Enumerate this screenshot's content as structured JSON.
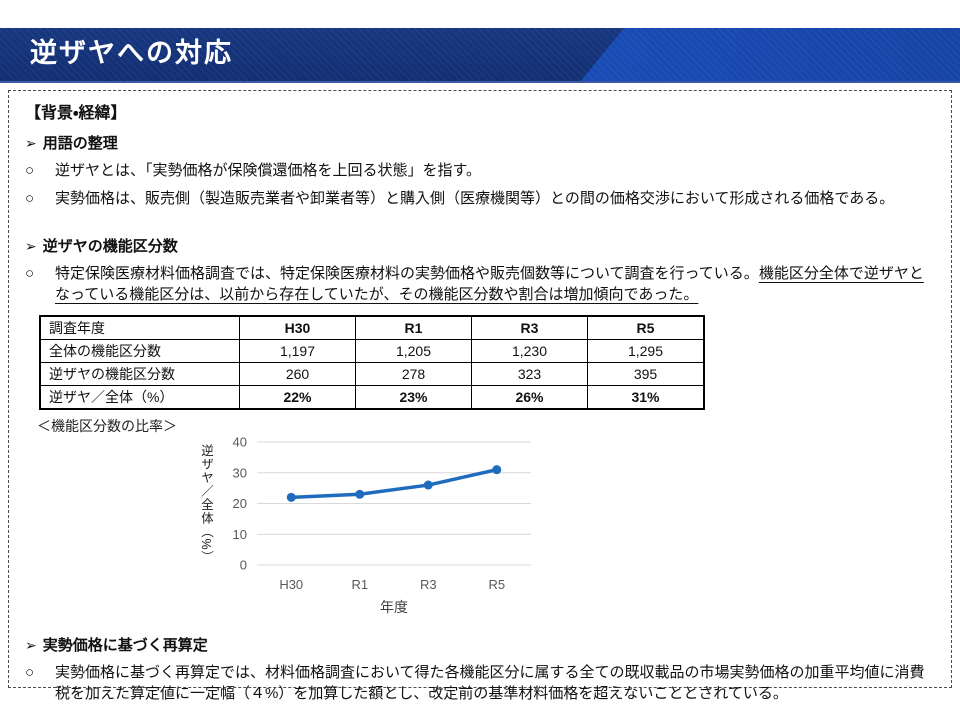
{
  "header": {
    "title": "逆ザヤへの対応"
  },
  "markers": {
    "arrow": "➢",
    "circle": "○"
  },
  "panel": {
    "heading": "【背景・経緯】",
    "terms": {
      "title": "用語の整理",
      "item1": "逆ザヤとは、「実勢価格が保険償還価格を上回る状態」を指す。",
      "item2": "実勢価格は、販売側（製造販売業者や卸業者等）と購入側（医療機関等）との間の価格交渉において形成される価格である。"
    },
    "counts": {
      "title": "逆ザヤの機能区分数",
      "item_plain": "特定保険医療材料価格調査では、特定保険医療材料の実勢価格や販売個数等について調査を行っている。",
      "underline_line1": "機能区分全体で逆ザヤと",
      "underline_line2": "なっている機能区分は、以前から存在していたが、その機能区分数や割合は増加傾向であった。"
    },
    "recalc": {
      "title": "実勢価格に基づく再算定",
      "item": "実勢価格に基づく再算定では、材料価格調査において得た各機能区分に属する全ての既収載品の市場実勢価格の加重平均値に消費税を加えた算定値に一定幅（４%）を加算した額とし、改定前の基準材料価格を超えないこととされている。"
    }
  },
  "table": {
    "header": [
      "調査年度",
      "H30",
      "R1",
      "R3",
      "R5"
    ],
    "rows": [
      {
        "label": "全体の機能区分数",
        "values": [
          "1,197",
          "1,205",
          "1,230",
          "1,295"
        ],
        "bold": false
      },
      {
        "label": "逆ザヤの機能区分数",
        "values": [
          "260",
          "278",
          "323",
          "395"
        ],
        "bold": false
      },
      {
        "label": "逆ザヤ／全体（%）",
        "values": [
          "22%",
          "23%",
          "26%",
          "31%"
        ],
        "bold": true
      }
    ]
  },
  "chart_data": {
    "type": "line",
    "title": "＜機能区分数の比率＞",
    "categories": [
      "H30",
      "R1",
      "R3",
      "R5"
    ],
    "values": [
      22,
      23,
      26,
      31
    ],
    "xlabel": "年度",
    "ylabel": "逆ザヤ／全体（%）",
    "ylim": [
      0,
      40
    ],
    "yticks": [
      0,
      10,
      20,
      30,
      40
    ],
    "grid": true,
    "legend": false,
    "line_color": "#1F6CBE",
    "grid_color": "#D9D9D9",
    "tick_color": "#595959"
  },
  "colors": {
    "banner_navy": "#14337E",
    "banner_bright": "#1D55C4",
    "title_text": "#FFFFFF"
  }
}
